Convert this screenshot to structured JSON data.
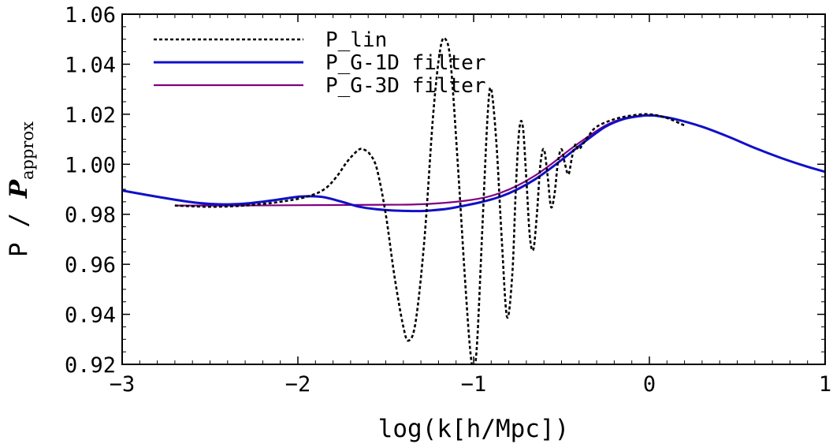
{
  "chart_data": {
    "type": "line",
    "xlabel": "log(k[h/Mpc])",
    "ylabel": {
      "prefix": "P  / ",
      "main": "P",
      "subscript": "approx"
    },
    "xlim": [
      -3,
      1
    ],
    "ylim": [
      0.92,
      1.06
    ],
    "xticks": [
      -3,
      -2,
      -1,
      0,
      1
    ],
    "xtick_labels": [
      "−3",
      "−2",
      "−1",
      "0",
      "1"
    ],
    "yticks": [
      0.92,
      0.94,
      0.96,
      0.98,
      1.0,
      1.02,
      1.04,
      1.06
    ],
    "ytick_labels": [
      "0.92",
      "0.94",
      "0.96",
      "0.98",
      "1.00",
      "1.02",
      "1.04",
      "1.06"
    ],
    "grid": false,
    "legend_position": "top-left",
    "series": [
      {
        "name": "P_lin",
        "color": "#000000",
        "style": "dotted",
        "x": [
          -2.7,
          -2.5,
          -2.3,
          -2.1,
          -1.95,
          -1.85,
          -1.78,
          -1.72,
          -1.66,
          -1.63,
          -1.59,
          -1.55,
          -1.5,
          -1.45,
          -1.4,
          -1.37,
          -1.33,
          -1.28,
          -1.23,
          -1.19,
          -1.16,
          -1.13,
          -1.09,
          -1.05,
          -1.02,
          -1.0,
          -0.98,
          -0.95,
          -0.92,
          -0.9,
          -0.87,
          -0.84,
          -0.81,
          -0.78,
          -0.76,
          -0.74,
          -0.72,
          -0.7,
          -0.68,
          -0.66,
          -0.64,
          -0.62,
          -0.6,
          -0.58,
          -0.56,
          -0.54,
          -0.52,
          -0.5,
          -0.48,
          -0.46,
          -0.44,
          -0.42,
          -0.4,
          -0.35,
          -0.3,
          -0.2,
          -0.1,
          0.0,
          0.1,
          0.2
        ],
        "y": [
          0.9835,
          0.983,
          0.9835,
          0.985,
          0.987,
          0.99,
          0.995,
          1.001,
          1.0055,
          1.006,
          1.004,
          0.998,
          0.98,
          0.955,
          0.935,
          0.9295,
          0.937,
          0.97,
          1.02,
          1.046,
          1.05,
          1.04,
          1.0,
          0.955,
          0.926,
          0.918,
          0.929,
          0.975,
          1.02,
          1.03,
          1.008,
          0.97,
          0.939,
          0.956,
          0.99,
          1.014,
          1.015,
          0.994,
          0.971,
          0.966,
          0.98,
          1.0,
          1.006,
          0.996,
          0.983,
          0.988,
          1.001,
          1.006,
          1.0,
          0.996,
          1.003,
          1.008,
          1.006,
          1.011,
          1.015,
          1.018,
          1.0195,
          1.02,
          1.0185,
          1.0155
        ]
      },
      {
        "name": "P_G-1D filter",
        "color": "#1010c8",
        "style": "solid",
        "x": [
          -3.0,
          -2.8,
          -2.6,
          -2.45,
          -2.3,
          -2.15,
          -2.0,
          -1.93,
          -1.85,
          -1.75,
          -1.65,
          -1.55,
          -1.45,
          -1.35,
          -1.3,
          -1.25,
          -1.15,
          -1.05,
          -0.95,
          -0.85,
          -0.75,
          -0.65,
          -0.55,
          -0.45,
          -0.35,
          -0.25,
          -0.15,
          -0.05,
          0.0,
          0.05,
          0.15,
          0.3,
          0.45,
          0.6,
          0.75,
          0.9,
          1.0
        ],
        "y": [
          0.9895,
          0.987,
          0.9848,
          0.984,
          0.9843,
          0.9855,
          0.987,
          0.9872,
          0.9868,
          0.985,
          0.983,
          0.982,
          0.9815,
          0.9813,
          0.9813,
          0.9815,
          0.9822,
          0.9835,
          0.985,
          0.987,
          0.99,
          0.994,
          0.999,
          1.0045,
          1.01,
          1.015,
          1.018,
          1.0193,
          1.0195,
          1.0193,
          1.018,
          1.015,
          1.011,
          1.0065,
          1.0025,
          0.999,
          0.997
        ]
      },
      {
        "name": "P_G-3D filter",
        "color": "#800080",
        "style": "solid",
        "x": [
          -2.7,
          -2.4,
          -2.1,
          -1.8,
          -1.5,
          -1.3,
          -1.1,
          -0.95,
          -0.85,
          -0.75,
          -0.65,
          -0.55,
          -0.45,
          -0.35,
          -0.25,
          -0.15,
          -0.05,
          0.0
        ],
        "y": [
          0.9835,
          0.9835,
          0.9836,
          0.9837,
          0.9838,
          0.984,
          0.985,
          0.9865,
          0.9885,
          0.9915,
          0.9955,
          1.0005,
          1.006,
          1.011,
          1.0155,
          1.0183,
          1.0195,
          1.0197
        ]
      }
    ]
  }
}
